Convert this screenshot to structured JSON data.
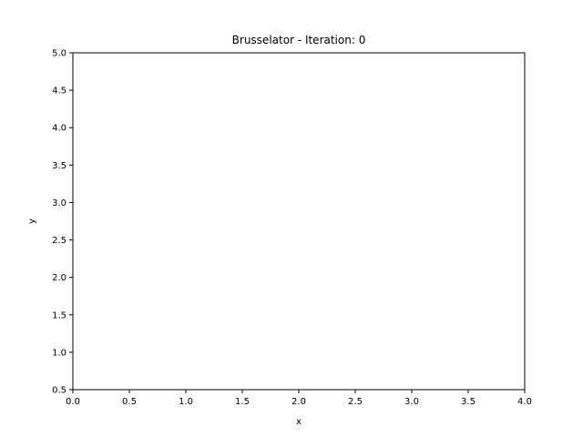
{
  "chart_data": {
    "type": "line",
    "title": "Brusselator - Iteration: 0",
    "xlabel": "x",
    "ylabel": "y",
    "xlim": [
      0.0,
      4.0
    ],
    "ylim": [
      0.5,
      5.0
    ],
    "xticks": [
      "0.0",
      "0.5",
      "1.0",
      "1.5",
      "2.0",
      "2.5",
      "3.0",
      "3.5",
      "4.0"
    ],
    "yticks": [
      "0.5",
      "1.0",
      "1.5",
      "2.0",
      "2.5",
      "3.0",
      "3.5",
      "4.0",
      "4.5",
      "5.0"
    ],
    "grid": false,
    "series": [
      {
        "x": [],
        "y": []
      }
    ]
  }
}
